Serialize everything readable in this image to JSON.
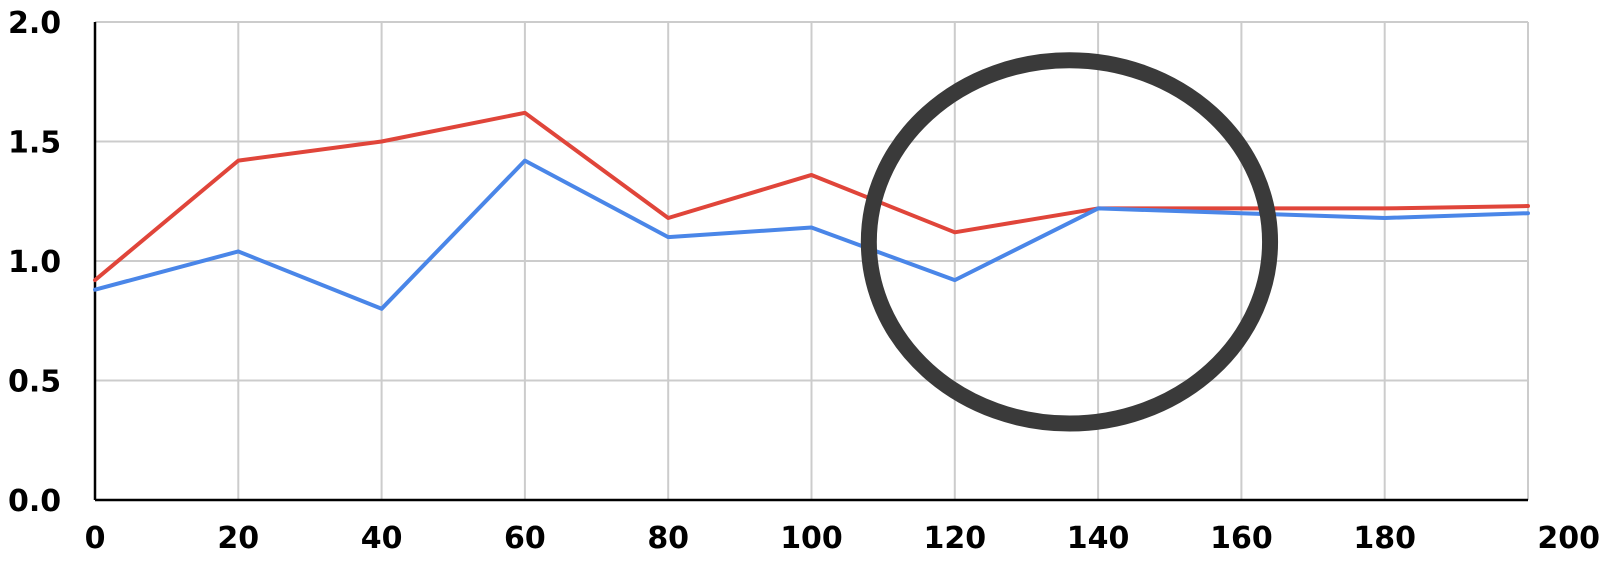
{
  "chart_data": {
    "type": "line",
    "title": "",
    "xlabel": "",
    "ylabel": "",
    "x": [
      0,
      20,
      40,
      60,
      80,
      100,
      120,
      140,
      160,
      180,
      200
    ],
    "xlim": [
      0,
      200
    ],
    "ylim": [
      0,
      2
    ],
    "x_ticks": [
      "0",
      "20",
      "40",
      "60",
      "80",
      "100",
      "120",
      "140",
      "160",
      "180",
      "200"
    ],
    "y_ticks": [
      "0.0",
      "0.5",
      "1.0",
      "1.5",
      "2.0"
    ],
    "y_tick_values": [
      0,
      0.5,
      1.0,
      1.5,
      2.0
    ],
    "grid": true,
    "legend": "none",
    "series": [
      {
        "color": "#e0453a",
        "values": [
          0.92,
          1.42,
          1.5,
          1.62,
          1.18,
          1.36,
          1.12,
          1.22,
          1.22,
          1.22,
          1.23
        ]
      },
      {
        "color": "#4a86e8",
        "values": [
          0.88,
          1.04,
          0.8,
          1.42,
          1.1,
          1.14,
          0.92,
          1.22,
          1.2,
          1.18,
          1.2
        ]
      }
    ],
    "annotations": [
      {
        "type": "ellipse",
        "color": "#3a3a3a",
        "center": [
          136,
          1.08
        ],
        "radius_x": 28,
        "radius_y": 0.76
      }
    ]
  }
}
